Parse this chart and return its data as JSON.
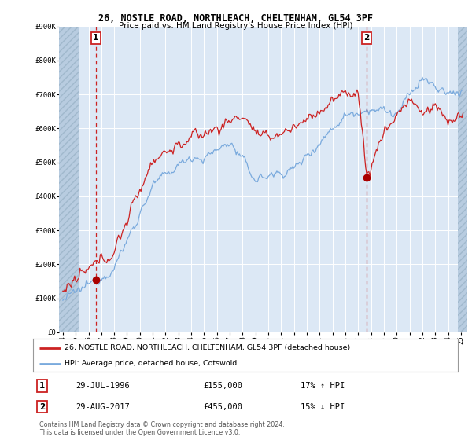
{
  "title": "26, NOSTLE ROAD, NORTHLEACH, CHELTENHAM, GL54 3PF",
  "subtitle": "Price paid vs. HM Land Registry's House Price Index (HPI)",
  "ylim": [
    0,
    900000
  ],
  "yticks": [
    0,
    100000,
    200000,
    300000,
    400000,
    500000,
    600000,
    700000,
    800000,
    900000
  ],
  "ytick_labels": [
    "£0",
    "£100K",
    "£200K",
    "£300K",
    "£400K",
    "£500K",
    "£600K",
    "£700K",
    "£800K",
    "£900K"
  ],
  "xlim_start": 1993.7,
  "xlim_end": 2025.5,
  "xtick_years": [
    1994,
    1995,
    1996,
    1997,
    1998,
    1999,
    2000,
    2001,
    2002,
    2003,
    2004,
    2005,
    2006,
    2007,
    2008,
    2009,
    2010,
    2011,
    2012,
    2013,
    2014,
    2015,
    2016,
    2017,
    2018,
    2019,
    2020,
    2021,
    2022,
    2023,
    2024,
    2025
  ],
  "hpi_color": "#7aaadd",
  "price_color": "#cc2222",
  "marker_color": "#aa0000",
  "dashed_line_color": "#cc2222",
  "transaction1_x": 1996.57,
  "transaction1_y": 155000,
  "transaction2_x": 2017.66,
  "transaction2_y": 455000,
  "legend_line1": "26, NOSTLE ROAD, NORTHLEACH, CHELTENHAM, GL54 3PF (detached house)",
  "legend_line2": "HPI: Average price, detached house, Cotswold",
  "annotation1_date": "29-JUL-1996",
  "annotation1_price": "£155,000",
  "annotation1_hpi": "17% ↑ HPI",
  "annotation2_date": "29-AUG-2017",
  "annotation2_price": "£455,000",
  "annotation2_hpi": "15% ↓ HPI",
  "footer": "Contains HM Land Registry data © Crown copyright and database right 2024.\nThis data is licensed under the Open Government Licence v3.0.",
  "plot_bg_color": "#dce8f5",
  "hatch_color": "#b8cce0"
}
